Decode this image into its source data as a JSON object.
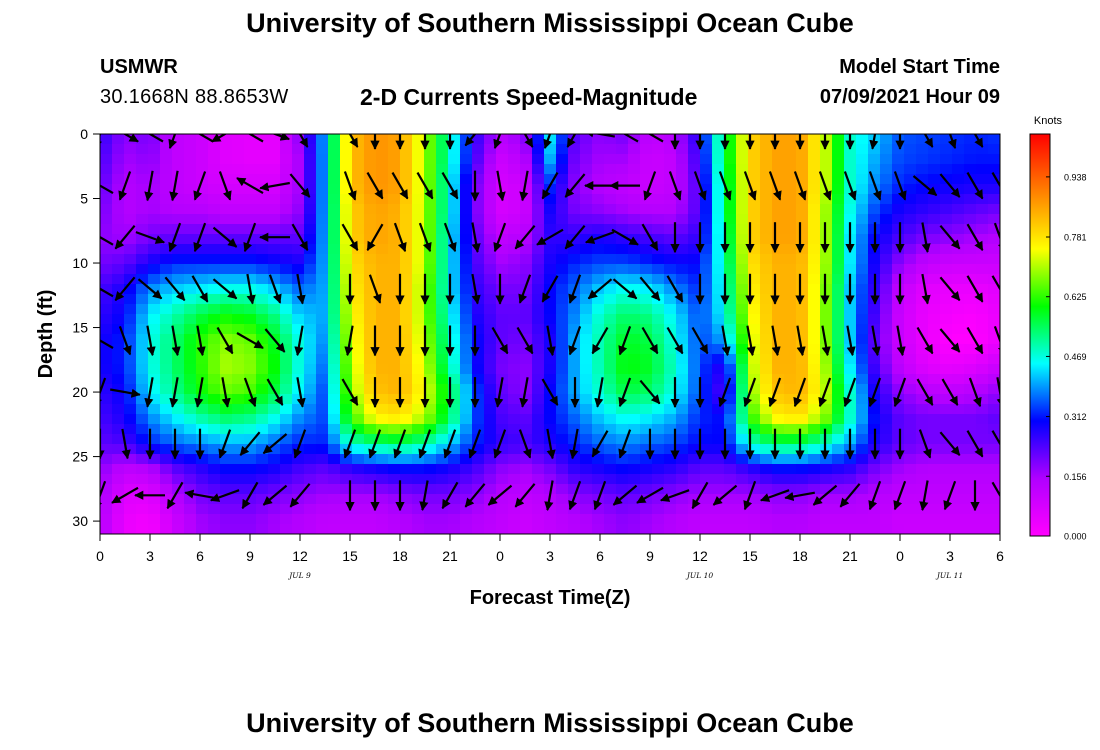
{
  "header": {
    "title": "University of Southern Mississippi Ocean Cube",
    "station": "USMWR",
    "coordinates": "30.1668N  88.8653W",
    "chart_title": "2-D Currents Speed-Magnitude",
    "model_label": "Model Start Time",
    "model_time": "07/09/2021 Hour 09"
  },
  "footer": {
    "title": "University of Southern Mississippi Ocean Cube"
  },
  "chart_data": {
    "type": "heatmap",
    "title": "2-D Currents Speed-Magnitude",
    "xlabel": "Forecast Time(Z)",
    "ylabel": "Depth (ft)",
    "x_hours": [
      0,
      1.5,
      3,
      4.5,
      6,
      7.5,
      9,
      10.5,
      12,
      13.5,
      15,
      16.5,
      18,
      19.5,
      21,
      22.5,
      24,
      25.5,
      27,
      28.5,
      30,
      31.5,
      33,
      34.5,
      36,
      37.5,
      39,
      40.5,
      42,
      43.5,
      45,
      46.5,
      48,
      49.5,
      51,
      52.5,
      54
    ],
    "xlim": [
      0,
      54
    ],
    "x_tick_positions": [
      0,
      3,
      6,
      9,
      12,
      15,
      18,
      21,
      24,
      27,
      30,
      33,
      36,
      39,
      42,
      45,
      48,
      51,
      54
    ],
    "x_tick_labels": [
      "0",
      "3",
      "6",
      "9",
      "12",
      "15",
      "18",
      "21",
      "0",
      "3",
      "6",
      "9",
      "12",
      "15",
      "18",
      "21",
      "0",
      "3",
      "6"
    ],
    "date_labels": [
      {
        "x": 12,
        "label": "JUL 9"
      },
      {
        "x": 36,
        "label": "JUL 10"
      },
      {
        "x": 51,
        "label": "JUL 11"
      }
    ],
    "y_depths": [
      0,
      2,
      4,
      6,
      8,
      10,
      12,
      14,
      16,
      18,
      20,
      22,
      24,
      26,
      28,
      30
    ],
    "ylim": [
      0,
      31
    ],
    "y_reversed": true,
    "y_ticks": [
      0,
      5,
      10,
      15,
      20,
      25,
      30
    ],
    "speed": [
      [
        0.26,
        0.18,
        0.2,
        0.12,
        0.1,
        0.06,
        0.05,
        0.05,
        0.18,
        0.4,
        0.82,
        0.88,
        0.86,
        0.7,
        0.48,
        0.26,
        0.14,
        0.18,
        0.44,
        0.22,
        0.18,
        0.2,
        0.12,
        0.14,
        0.28,
        0.56,
        0.8,
        0.86,
        0.86,
        0.72,
        0.48,
        0.42,
        0.35,
        0.34,
        0.33,
        0.32,
        0.33
      ],
      [
        0.24,
        0.16,
        0.18,
        0.12,
        0.1,
        0.06,
        0.05,
        0.05,
        0.16,
        0.4,
        0.82,
        0.88,
        0.86,
        0.7,
        0.48,
        0.24,
        0.1,
        0.14,
        0.4,
        0.2,
        0.16,
        0.16,
        0.1,
        0.12,
        0.26,
        0.56,
        0.8,
        0.86,
        0.86,
        0.72,
        0.48,
        0.4,
        0.34,
        0.33,
        0.32,
        0.31,
        0.31
      ],
      [
        0.22,
        0.14,
        0.16,
        0.12,
        0.1,
        0.08,
        0.08,
        0.08,
        0.16,
        0.4,
        0.82,
        0.88,
        0.86,
        0.7,
        0.46,
        0.2,
        0.08,
        0.1,
        0.32,
        0.18,
        0.14,
        0.12,
        0.1,
        0.12,
        0.24,
        0.54,
        0.8,
        0.86,
        0.86,
        0.72,
        0.48,
        0.38,
        0.32,
        0.3,
        0.29,
        0.28,
        0.28
      ],
      [
        0.2,
        0.14,
        0.16,
        0.14,
        0.14,
        0.12,
        0.12,
        0.12,
        0.18,
        0.4,
        0.8,
        0.86,
        0.84,
        0.7,
        0.46,
        0.2,
        0.08,
        0.1,
        0.28,
        0.2,
        0.18,
        0.16,
        0.14,
        0.14,
        0.24,
        0.54,
        0.8,
        0.86,
        0.86,
        0.7,
        0.46,
        0.34,
        0.28,
        0.26,
        0.24,
        0.22,
        0.2
      ],
      [
        0.18,
        0.16,
        0.2,
        0.22,
        0.22,
        0.22,
        0.22,
        0.22,
        0.22,
        0.4,
        0.8,
        0.86,
        0.84,
        0.7,
        0.44,
        0.22,
        0.12,
        0.14,
        0.26,
        0.26,
        0.28,
        0.26,
        0.24,
        0.22,
        0.26,
        0.52,
        0.8,
        0.86,
        0.86,
        0.7,
        0.44,
        0.3,
        0.24,
        0.2,
        0.18,
        0.16,
        0.14
      ],
      [
        0.2,
        0.22,
        0.28,
        0.32,
        0.32,
        0.32,
        0.32,
        0.3,
        0.28,
        0.4,
        0.78,
        0.84,
        0.84,
        0.7,
        0.44,
        0.24,
        0.16,
        0.18,
        0.28,
        0.32,
        0.34,
        0.34,
        0.32,
        0.3,
        0.3,
        0.5,
        0.78,
        0.84,
        0.84,
        0.7,
        0.44,
        0.28,
        0.18,
        0.12,
        0.1,
        0.1,
        0.1
      ],
      [
        0.24,
        0.28,
        0.38,
        0.42,
        0.44,
        0.46,
        0.46,
        0.42,
        0.36,
        0.4,
        0.76,
        0.84,
        0.84,
        0.68,
        0.44,
        0.26,
        0.2,
        0.2,
        0.3,
        0.36,
        0.42,
        0.46,
        0.44,
        0.38,
        0.32,
        0.48,
        0.76,
        0.84,
        0.84,
        0.68,
        0.42,
        0.26,
        0.12,
        0.06,
        0.04,
        0.04,
        0.06
      ],
      [
        0.26,
        0.3,
        0.44,
        0.5,
        0.56,
        0.6,
        0.58,
        0.52,
        0.42,
        0.4,
        0.74,
        0.84,
        0.84,
        0.68,
        0.46,
        0.28,
        0.22,
        0.22,
        0.3,
        0.38,
        0.48,
        0.54,
        0.52,
        0.44,
        0.34,
        0.46,
        0.74,
        0.84,
        0.84,
        0.68,
        0.42,
        0.24,
        0.1,
        0.04,
        0.02,
        0.01,
        0.04
      ],
      [
        0.28,
        0.32,
        0.46,
        0.54,
        0.62,
        0.68,
        0.66,
        0.58,
        0.46,
        0.38,
        0.72,
        0.84,
        0.84,
        0.7,
        0.48,
        0.3,
        0.22,
        0.2,
        0.28,
        0.4,
        0.5,
        0.58,
        0.56,
        0.46,
        0.34,
        0.4,
        0.72,
        0.84,
        0.84,
        0.68,
        0.42,
        0.22,
        0.1,
        0.04,
        0.0,
        0.0,
        0.04
      ],
      [
        0.28,
        0.32,
        0.46,
        0.54,
        0.62,
        0.7,
        0.68,
        0.6,
        0.46,
        0.36,
        0.7,
        0.84,
        0.84,
        0.72,
        0.5,
        0.3,
        0.2,
        0.18,
        0.28,
        0.4,
        0.5,
        0.6,
        0.58,
        0.48,
        0.34,
        0.26,
        0.7,
        0.84,
        0.84,
        0.7,
        0.44,
        0.24,
        0.12,
        0.06,
        0.04,
        0.06,
        0.1
      ],
      [
        0.26,
        0.3,
        0.44,
        0.52,
        0.6,
        0.66,
        0.64,
        0.56,
        0.44,
        0.34,
        0.68,
        0.82,
        0.84,
        0.74,
        0.56,
        0.34,
        0.22,
        0.18,
        0.3,
        0.4,
        0.48,
        0.56,
        0.54,
        0.46,
        0.34,
        0.22,
        0.68,
        0.82,
        0.84,
        0.72,
        0.48,
        0.28,
        0.18,
        0.14,
        0.12,
        0.14,
        0.18
      ],
      [
        0.24,
        0.28,
        0.38,
        0.44,
        0.5,
        0.54,
        0.52,
        0.46,
        0.38,
        0.34,
        0.62,
        0.76,
        0.78,
        0.7,
        0.54,
        0.34,
        0.24,
        0.22,
        0.3,
        0.36,
        0.42,
        0.46,
        0.44,
        0.4,
        0.32,
        0.3,
        0.62,
        0.76,
        0.78,
        0.68,
        0.48,
        0.3,
        0.22,
        0.2,
        0.2,
        0.2,
        0.22
      ],
      [
        0.22,
        0.24,
        0.32,
        0.36,
        0.38,
        0.4,
        0.4,
        0.36,
        0.32,
        0.32,
        0.48,
        0.52,
        0.54,
        0.5,
        0.42,
        0.32,
        0.26,
        0.24,
        0.28,
        0.32,
        0.36,
        0.38,
        0.36,
        0.34,
        0.3,
        0.3,
        0.48,
        0.54,
        0.54,
        0.48,
        0.4,
        0.28,
        0.22,
        0.2,
        0.2,
        0.2,
        0.2
      ],
      [
        0.18,
        0.12,
        0.14,
        0.22,
        0.26,
        0.3,
        0.3,
        0.28,
        0.24,
        0.22,
        0.26,
        0.28,
        0.3,
        0.3,
        0.28,
        0.24,
        0.18,
        0.16,
        0.2,
        0.26,
        0.28,
        0.3,
        0.28,
        0.26,
        0.22,
        0.22,
        0.26,
        0.3,
        0.3,
        0.28,
        0.26,
        0.2,
        0.16,
        0.14,
        0.14,
        0.14,
        0.14
      ],
      [
        0.16,
        0.06,
        0.06,
        0.14,
        0.2,
        0.22,
        0.22,
        0.2,
        0.18,
        0.16,
        0.16,
        0.16,
        0.18,
        0.2,
        0.2,
        0.18,
        0.14,
        0.12,
        0.14,
        0.18,
        0.2,
        0.22,
        0.2,
        0.18,
        0.16,
        0.16,
        0.16,
        0.18,
        0.18,
        0.16,
        0.16,
        0.14,
        0.12,
        0.12,
        0.12,
        0.12,
        0.12
      ],
      [
        0.14,
        0.04,
        0.02,
        0.1,
        0.16,
        0.18,
        0.18,
        0.16,
        0.14,
        0.12,
        0.12,
        0.12,
        0.14,
        0.16,
        0.16,
        0.14,
        0.12,
        0.1,
        0.12,
        0.14,
        0.16,
        0.18,
        0.16,
        0.14,
        0.12,
        0.12,
        0.12,
        0.14,
        0.14,
        0.12,
        0.12,
        0.12,
        0.1,
        0.1,
        0.1,
        0.1,
        0.1
      ]
    ],
    "arrow_times": [
      0,
      1.5,
      3,
      4.5,
      6,
      7.5,
      9,
      10.5,
      12,
      15,
      16.5,
      18,
      19.5,
      21,
      22.5,
      24,
      25.5,
      27,
      28.5,
      30,
      31.5,
      33,
      34.5,
      36,
      37.5,
      39,
      40.5,
      42,
      43.5,
      45,
      46.5,
      48,
      49.5,
      51,
      52.5,
      54
    ],
    "arrow_depths": [
      0,
      4,
      8,
      12,
      16,
      20,
      24,
      28
    ],
    "arrow_directions_deg": [
      [
        200,
        120,
        300,
        200,
        300,
        240,
        300,
        110,
        150,
        150,
        180,
        180,
        180,
        180,
        220,
        200,
        150,
        200,
        210,
        280,
        300,
        300,
        180,
        180,
        180,
        180,
        180,
        180,
        180,
        180,
        190,
        180,
        150,
        160,
        150,
        140
      ],
      [
        300,
        200,
        190,
        190,
        200,
        160,
        300,
        260,
        140,
        160,
        150,
        150,
        150,
        150,
        180,
        170,
        190,
        210,
        220,
        270,
        270,
        200,
        160,
        160,
        160,
        160,
        160,
        160,
        160,
        160,
        160,
        160,
        130,
        140,
        150,
        150
      ],
      [
        300,
        220,
        110,
        200,
        200,
        130,
        200,
        270,
        150,
        150,
        210,
        160,
        160,
        160,
        170,
        200,
        220,
        240,
        220,
        250,
        120,
        150,
        180,
        180,
        180,
        180,
        180,
        180,
        180,
        180,
        180,
        180,
        170,
        140,
        150,
        160
      ],
      [
        300,
        220,
        130,
        140,
        150,
        130,
        170,
        160,
        170,
        180,
        160,
        180,
        180,
        180,
        170,
        180,
        200,
        210,
        200,
        230,
        130,
        140,
        150,
        180,
        180,
        180,
        180,
        180,
        180,
        180,
        180,
        180,
        170,
        140,
        150,
        150
      ],
      [
        300,
        160,
        170,
        170,
        170,
        150,
        120,
        140,
        190,
        190,
        180,
        180,
        180,
        180,
        180,
        150,
        150,
        170,
        200,
        210,
        200,
        150,
        150,
        150,
        170,
        170,
        170,
        170,
        170,
        170,
        170,
        170,
        150,
        140,
        150,
        160
      ],
      [
        200,
        100,
        190,
        190,
        190,
        170,
        160,
        150,
        170,
        150,
        180,
        180,
        180,
        180,
        180,
        190,
        190,
        150,
        180,
        190,
        200,
        140,
        180,
        180,
        200,
        200,
        200,
        200,
        200,
        200,
        200,
        200,
        150,
        150,
        160,
        170
      ],
      [
        180,
        170,
        180,
        180,
        180,
        200,
        220,
        230,
        200,
        200,
        200,
        200,
        200,
        200,
        200,
        200,
        160,
        170,
        190,
        210,
        200,
        180,
        180,
        180,
        180,
        180,
        180,
        180,
        180,
        180,
        180,
        180,
        160,
        140,
        150,
        150
      ],
      [
        200,
        240,
        270,
        210,
        280,
        250,
        210,
        230,
        220,
        180,
        180,
        180,
        190,
        210,
        220,
        230,
        220,
        190,
        200,
        200,
        230,
        240,
        250,
        210,
        230,
        200,
        250,
        260,
        230,
        220,
        200,
        200,
        190,
        200,
        180,
        150
      ]
    ],
    "colorbar": {
      "unit": "Knots",
      "ticks": [
        0.0,
        0.156,
        0.312,
        0.469,
        0.625,
        0.781,
        0.938
      ],
      "tick_labels": [
        "0.000",
        "0.156",
        "0.312",
        "0.469",
        "0.625",
        "0.781",
        "0.938"
      ],
      "range": [
        0,
        1.05
      ],
      "colors": [
        "#ff00ff",
        "#b000ff",
        "#0000ff",
        "#00ffff",
        "#00ff00",
        "#ffff00",
        "#ff8000",
        "#ff0000"
      ]
    }
  }
}
